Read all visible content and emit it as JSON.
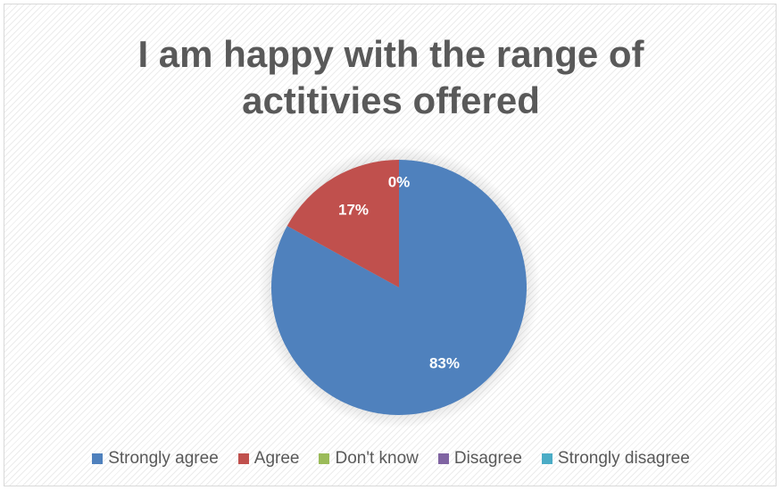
{
  "chart_data": {
    "type": "pie",
    "title": [
      "I am happy with the range of",
      "actitivies offered"
    ],
    "categories": [
      "Strongly agree",
      "Agree",
      "Don't know",
      "Disagree",
      "Strongly disagree"
    ],
    "values": [
      83,
      17,
      0,
      0,
      0
    ],
    "labels": [
      "83%",
      "17%",
      "0%",
      "",
      ""
    ],
    "colors": [
      "#4f81bd",
      "#c0504d",
      "#9bbb59",
      "#8064a2",
      "#4bacc6"
    ],
    "legend_position": "bottom"
  }
}
